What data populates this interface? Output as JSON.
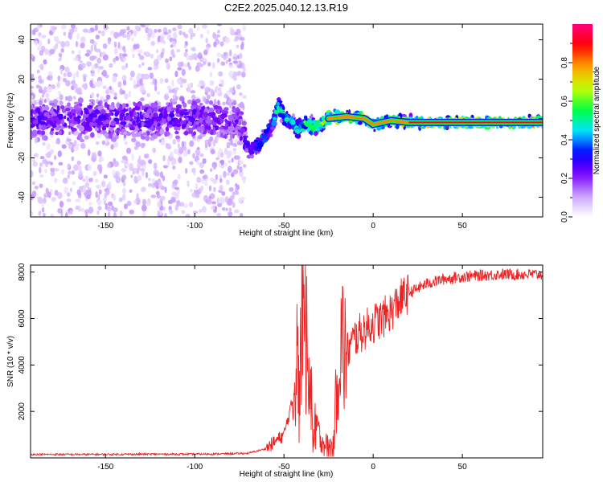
{
  "figure": {
    "title": "C2E2.2025.040.12.13.R19"
  },
  "chart_data": [
    {
      "type": "heatmap",
      "xlabel": "Height of straight line (km)",
      "ylabel": "Frequency (Hz)",
      "xlim": [
        -192,
        95
      ],
      "ylim": [
        -50,
        48
      ],
      "xticks": [
        -150,
        -100,
        -50,
        0,
        50
      ],
      "yticks": [
        -40,
        -20,
        0,
        20,
        40
      ],
      "colorbar": {
        "label": "Normalized spectral amplitude",
        "range": [
          0,
          1
        ],
        "ticks": [
          0.0,
          0.2,
          0.4,
          0.6,
          0.8
        ],
        "colors": [
          "#ffffff",
          "#c9a2ff",
          "#7a00ff",
          "#0000ff",
          "#00e5ff",
          "#00ff40",
          "#c8ff00",
          "#ffa500",
          "#ff0000",
          "#ff007f"
        ]
      },
      "ridge": [
        {
          "x": -192,
          "f": 0,
          "a": 0.25
        },
        {
          "x": -150,
          "f": 0,
          "a": 0.25
        },
        {
          "x": -100,
          "f": 0,
          "a": 0.25
        },
        {
          "x": -75,
          "f": -2,
          "a": 0.22
        },
        {
          "x": -70,
          "f": -16,
          "a": 0.35
        },
        {
          "x": -64,
          "f": -13,
          "a": 0.4
        },
        {
          "x": -57,
          "f": -4,
          "a": 0.38
        },
        {
          "x": -53,
          "f": 7,
          "a": 0.5
        },
        {
          "x": -49,
          "f": 0,
          "a": 0.45
        },
        {
          "x": -43,
          "f": -5,
          "a": 0.5
        },
        {
          "x": -38,
          "f": -3,
          "a": 0.55
        },
        {
          "x": -32,
          "f": -4,
          "a": 0.6
        },
        {
          "x": -25,
          "f": 0,
          "a": 0.75
        },
        {
          "x": -15,
          "f": 1,
          "a": 0.8
        },
        {
          "x": -5,
          "f": 0,
          "a": 0.85
        },
        {
          "x": 0,
          "f": -3,
          "a": 0.75
        },
        {
          "x": 10,
          "f": -1,
          "a": 0.8
        },
        {
          "x": 20,
          "f": -2,
          "a": 0.88
        },
        {
          "x": 40,
          "f": -2,
          "a": 0.9
        },
        {
          "x": 60,
          "f": -2,
          "a": 0.92
        },
        {
          "x": 80,
          "f": -2,
          "a": 0.92
        },
        {
          "x": 95,
          "f": -2,
          "a": 0.9
        }
      ]
    },
    {
      "type": "line",
      "xlabel": "Height of straight line (km)",
      "ylabel": "SNR (10 * v/v)",
      "xlim": [
        -192,
        95
      ],
      "ylim": [
        0,
        8300
      ],
      "xticks": [
        -150,
        -100,
        -50,
        0,
        50
      ],
      "yticks": [
        2000,
        4000,
        6000,
        8000
      ],
      "color": "#ee2222",
      "series": [
        {
          "x": [
            -192,
            -160,
            -130,
            -100,
            -80,
            -70,
            -60,
            -55,
            -50,
            -45,
            -42,
            -40,
            -38,
            -36,
            -34,
            -32,
            -30,
            -28,
            -25,
            -22,
            -20,
            -18,
            -15,
            -10,
            -5,
            0,
            5,
            10,
            15,
            20,
            25,
            30,
            40,
            50,
            60,
            70,
            80,
            95
          ],
          "y": [
            150,
            150,
            160,
            160,
            180,
            200,
            400,
            700,
            1000,
            2500,
            5500,
            7800,
            6000,
            3500,
            2000,
            1500,
            900,
            700,
            400,
            600,
            4000,
            5000,
            4500,
            5200,
            5500,
            5800,
            6000,
            6300,
            6800,
            7100,
            7300,
            7500,
            7700,
            7800,
            7850,
            7900,
            7900,
            7900
          ]
        }
      ]
    }
  ]
}
